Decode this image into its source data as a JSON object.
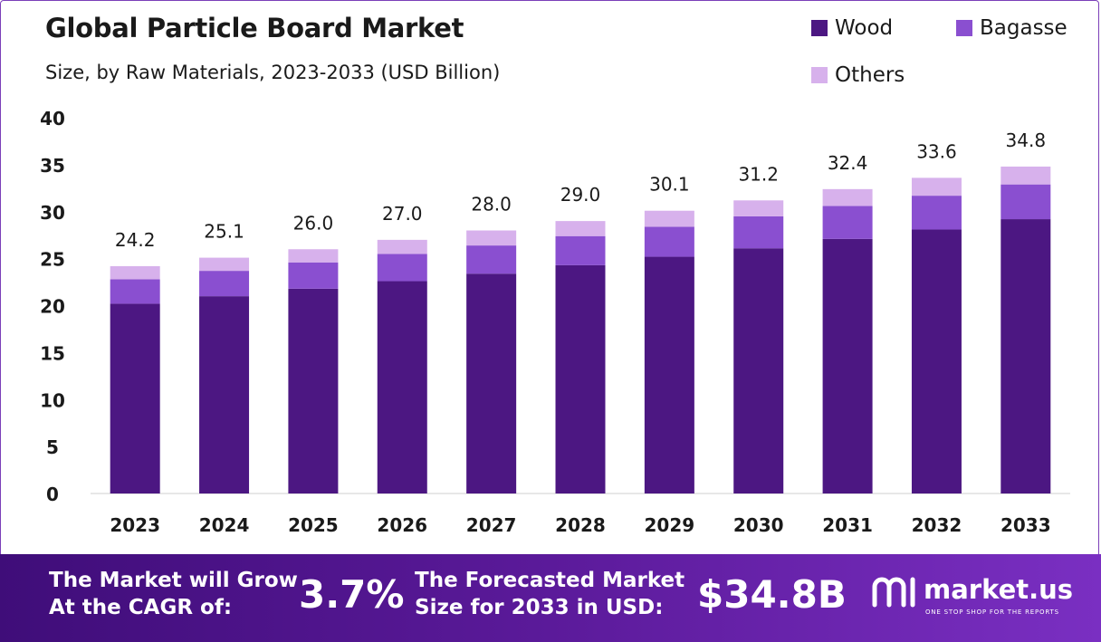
{
  "colors": {
    "wood": "#4c1782",
    "bagasse": "#8a4fd0",
    "others": "#d7b1ec",
    "footer_start": "#3f0d79",
    "footer_end": "#7a2fc2"
  },
  "chart_data": {
    "type": "bar",
    "stacked": true,
    "title": "Global Particle Board Market",
    "subtitle": "Size, by Raw Materials, 2023-2033 (USD Billion)",
    "xlabel": "",
    "ylabel": "",
    "ylim": [
      0,
      40
    ],
    "yticks": [
      "0",
      "5",
      "10",
      "15",
      "20",
      "25",
      "30",
      "35",
      "40"
    ],
    "categories": [
      "2023",
      "2024",
      "2025",
      "2026",
      "2027",
      "2028",
      "2029",
      "2030",
      "2031",
      "2032",
      "2033"
    ],
    "series": [
      {
        "name": "Wood",
        "values": [
          20.2,
          21.0,
          21.8,
          22.6,
          23.4,
          24.3,
          25.2,
          26.1,
          27.1,
          28.1,
          29.2
        ]
      },
      {
        "name": "Bagasse",
        "values": [
          2.6,
          2.7,
          2.8,
          2.9,
          3.0,
          3.1,
          3.2,
          3.4,
          3.5,
          3.6,
          3.7
        ]
      },
      {
        "name": "Others",
        "values": [
          1.4,
          1.4,
          1.4,
          1.5,
          1.6,
          1.6,
          1.7,
          1.7,
          1.8,
          1.9,
          1.9
        ]
      }
    ],
    "totals": [
      "24.2",
      "25.1",
      "26.0",
      "27.0",
      "28.0",
      "29.0",
      "30.1",
      "31.2",
      "32.4",
      "33.6",
      "34.8"
    ],
    "legend": [
      "Wood",
      "Bagasse",
      "Others"
    ],
    "legend_position": "top-right",
    "grid": false
  },
  "footer": {
    "cagr_label_line1": "The Market will Grow",
    "cagr_label_line2": "At the CAGR of:",
    "cagr_value": "3.7%",
    "forecast_label_line1": "The Forecasted Market",
    "forecast_label_line2": "Size for 2033 in USD:",
    "forecast_value": "$34.8B",
    "brand_name": "market.us",
    "brand_tagline": "ONE STOP SHOP FOR THE REPORTS"
  }
}
